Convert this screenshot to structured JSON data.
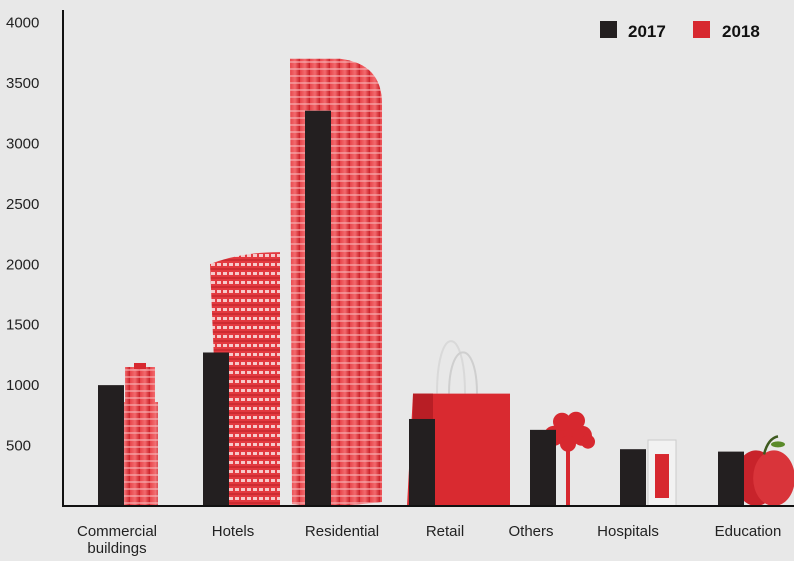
{
  "chart_data": {
    "type": "bar",
    "categories": [
      "Commercial buildings",
      "Hotels",
      "Residential",
      "Retail",
      "Others",
      "Hospitals",
      "Education"
    ],
    "category_lines": [
      [
        "Commercial",
        "buildings"
      ],
      [
        "Hotels"
      ],
      [
        "Residential"
      ],
      [
        "Retail"
      ],
      [
        "Others"
      ],
      [
        "Hospitals"
      ],
      [
        "Education"
      ]
    ],
    "series": [
      {
        "name": "2017",
        "color": "#231f20",
        "values": [
          1000,
          1270,
          3270,
          720,
          630,
          470,
          450
        ]
      },
      {
        "name": "2018",
        "color": "#d7282f",
        "values": [
          1150,
          2100,
          3700,
          930,
          780,
          430,
          460
        ],
        "icons": [
          "skyscraper-icon",
          "hotel-tower-icon",
          "residential-tower-icon",
          "shopping-bag-icon",
          "tree-icon",
          "glass-icon",
          "apple-icon"
        ]
      }
    ],
    "yticks": [
      500,
      1000,
      1500,
      2000,
      2500,
      3000,
      3500,
      4000
    ],
    "ylim": [
      0,
      4100
    ],
    "title": "",
    "xlabel": "",
    "ylabel": "",
    "grid": false,
    "legend_position": "top-right"
  }
}
